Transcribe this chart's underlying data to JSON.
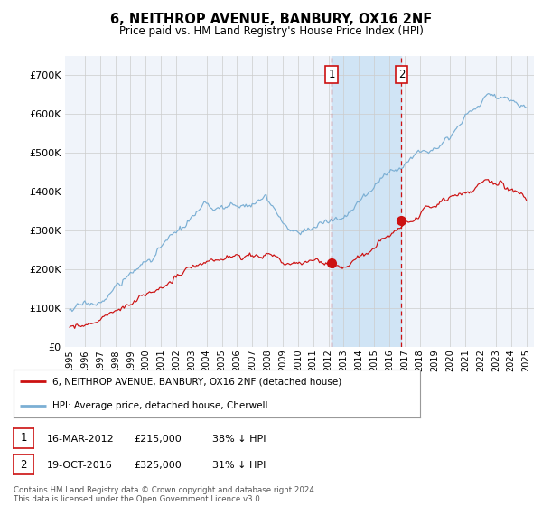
{
  "title": "6, NEITHROP AVENUE, BANBURY, OX16 2NF",
  "subtitle": "Price paid vs. HM Land Registry's House Price Index (HPI)",
  "ylim": [
    0,
    750000
  ],
  "yticks": [
    0,
    100000,
    200000,
    300000,
    400000,
    500000,
    600000,
    700000
  ],
  "ytick_labels": [
    "£0",
    "£100K",
    "£200K",
    "£300K",
    "£400K",
    "£500K",
    "£600K",
    "£700K"
  ],
  "hpi_color": "#7bafd4",
  "price_color": "#cc1111",
  "sale1_date_num": 2012.21,
  "sale1_price": 215000,
  "sale2_date_num": 2016.8,
  "sale2_price": 325000,
  "legend_house": "6, NEITHROP AVENUE, BANBURY, OX16 2NF (detached house)",
  "legend_hpi": "HPI: Average price, detached house, Cherwell",
  "note1_date": "16-MAR-2012",
  "note1_price": "£215,000",
  "note1_pct": "38% ↓ HPI",
  "note2_date": "19-OCT-2016",
  "note2_price": "£325,000",
  "note2_pct": "31% ↓ HPI",
  "footer": "Contains HM Land Registry data © Crown copyright and database right 2024.\nThis data is licensed under the Open Government Licence v3.0.",
  "background_color": "#ffffff",
  "plot_bg_color": "#f0f4fa",
  "shade_color": "#d0e4f5",
  "grid_color": "#cccccc",
  "xlabel_color": "#333333"
}
